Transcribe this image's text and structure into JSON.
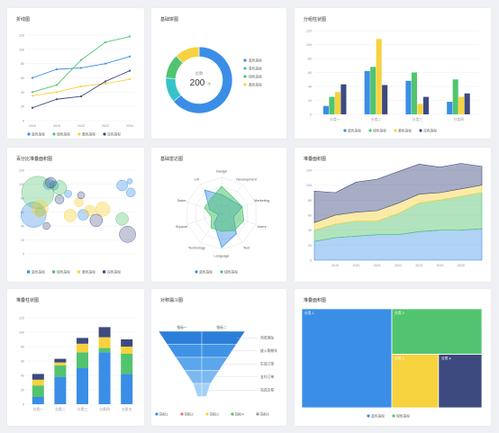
{
  "colors": {
    "blue": "#3a8ee6",
    "green": "#52c46f",
    "yellow": "#f7d23f",
    "navy": "#3d4a80",
    "cyan": "#35c3c8",
    "grid": "#eceef2",
    "axis": "#ccd0d6",
    "label": "#8a8f99"
  },
  "titles": [
    "折线图",
    "基础饼图",
    "分组柱状图",
    "百分比堆叠面积图",
    "基础雷达图",
    "堆叠面积图",
    "堆叠柱状图",
    "对称漏斗图",
    "堆叠面积图"
  ],
  "chart_data": [
    {
      "type": "line",
      "title": "折线图",
      "ylim": [
        0,
        120
      ],
      "yticks": [
        "0",
        "20",
        "40",
        "60",
        "80",
        "100",
        "120"
      ],
      "categories": [
        "2020",
        "2019",
        "2022",
        "2023",
        "2024"
      ],
      "series": [
        {
          "name": "蓝色指标",
          "values": [
            60,
            72,
            74,
            80,
            90
          ]
        },
        {
          "name": "绿色指标",
          "values": [
            40,
            50,
            85,
            110,
            118
          ]
        },
        {
          "name": "黄色指标",
          "values": [
            35,
            40,
            48,
            52,
            58
          ]
        },
        {
          "name": "深色指标",
          "values": [
            18,
            30,
            34,
            55,
            70
          ]
        }
      ]
    },
    {
      "type": "pie",
      "title": "基础饼图",
      "center_label": "总数",
      "center_value": "200",
      "center_unit": "个",
      "series": [
        {
          "name": "蓝色指标",
          "value": 128
        },
        {
          "name": "青色指标",
          "value": 24
        },
        {
          "name": "绿色指标",
          "value": 24
        },
        {
          "name": "黄色指标",
          "value": 24
        }
      ]
    },
    {
      "type": "bar",
      "title": "分组柱状图",
      "ylim": [
        0,
        120
      ],
      "yticks": [
        "0",
        "20",
        "40",
        "60",
        "80",
        "100",
        "120"
      ],
      "categories": [
        "分类一",
        "分类二",
        "分类三",
        "分类四"
      ],
      "series": [
        {
          "name": "蓝色指标",
          "values": [
            12,
            62,
            48,
            18
          ]
        },
        {
          "name": "绿色指标",
          "values": [
            25,
            68,
            60,
            50
          ]
        },
        {
          "name": "黄色指标",
          "values": [
            32,
            108,
            15,
            25
          ]
        },
        {
          "name": "深色指标",
          "values": [
            43,
            42,
            25,
            30
          ]
        }
      ]
    },
    {
      "type": "scatter",
      "title": "百分比堆叠面积图",
      "ylim": [
        0,
        120
      ],
      "yticks": [
        "0",
        "20",
        "40",
        "60",
        "80",
        "100",
        "120"
      ],
      "series": [
        {
          "name": "蓝色指标",
          "points": [
            [
              6,
              56,
              14
            ],
            [
              20,
              100,
              6
            ],
            [
              25,
              98,
              5
            ],
            [
              38,
              86,
              4
            ],
            [
              52,
              56,
              6
            ],
            [
              88,
              98,
              6
            ],
            [
              95,
              104,
              3
            ],
            [
              96,
              88,
              5
            ]
          ]
        },
        {
          "name": "绿色指标",
          "points": [
            [
              10,
              88,
              18
            ],
            [
              30,
              95,
              8
            ],
            [
              12,
              60,
              5
            ],
            [
              88,
              50,
              7
            ]
          ]
        },
        {
          "name": "黄色指标",
          "points": [
            [
              12,
              65,
              9
            ],
            [
              40,
              55,
              7
            ],
            [
              58,
              62,
              6
            ],
            [
              70,
              64,
              8
            ],
            [
              48,
              74,
              5
            ]
          ]
        },
        {
          "name": "深色指标",
          "points": [
            [
              22,
              102,
              6
            ],
            [
              30,
              78,
              5
            ],
            [
              64,
              48,
              7
            ],
            [
              93,
              28,
              9
            ],
            [
              18,
              40,
              4
            ],
            [
              50,
              84,
              4
            ]
          ]
        }
      ]
    },
    {
      "type": "radar",
      "title": "基础雷达图",
      "axes": [
        "Design",
        "Development",
        "Marketing",
        "Users",
        "Test",
        "Language",
        "Technology",
        "Support",
        "Sales",
        "UX"
      ],
      "series": [
        {
          "name": "蓝色指标",
          "values": [
            0.52,
            0.45,
            0.6,
            0.35,
            0.7,
            0.95,
            0.35,
            0.1,
            0.35,
            0.8
          ]
        },
        {
          "name": "绿色指标",
          "values": [
            0.75,
            0.55,
            0.6,
            0.65,
            0.6,
            0.5,
            0.5,
            0.3,
            0.5,
            0.5
          ]
        }
      ]
    },
    {
      "type": "area",
      "title": "堆叠面积图",
      "ylim": [
        0,
        120
      ],
      "yticks": [
        "0",
        "20",
        "40",
        "60",
        "80",
        "100",
        "120"
      ],
      "categories": [
        "2018",
        "2019",
        "2020",
        "2021",
        "2022",
        "2023",
        "2024",
        "2025",
        "2026"
      ],
      "series": [
        {
          "name": "s1",
          "values": [
            25,
            30,
            32,
            34,
            34,
            38,
            40,
            40,
            42
          ]
        },
        {
          "name": "s2",
          "values": [
            15,
            18,
            20,
            18,
            28,
            38,
            40,
            45,
            48
          ]
        },
        {
          "name": "s3",
          "values": [
            10,
            12,
            12,
            14,
            14,
            12,
            10,
            10,
            10
          ]
        },
        {
          "name": "s4",
          "values": [
            42,
            30,
            40,
            42,
            42,
            40,
            34,
            34,
            25
          ]
        }
      ]
    },
    {
      "type": "bar",
      "stacked": true,
      "title": "堆叠柱状图",
      "ylim": [
        0,
        120
      ],
      "yticks": [
        "0",
        "20",
        "40",
        "60",
        "80",
        "100",
        "120"
      ],
      "categories": [
        "分类一",
        "分类二",
        "分类三",
        "分类四",
        "分类五"
      ],
      "series": [
        {
          "name": "蓝色指标",
          "values": [
            10,
            38,
            50,
            72,
            42
          ]
        },
        {
          "name": "绿色指标",
          "values": [
            16,
            16,
            22,
            6,
            28
          ]
        },
        {
          "name": "黄色指标",
          "values": [
            8,
            4,
            12,
            15,
            10
          ]
        },
        {
          "name": "深色指标",
          "values": [
            8,
            5,
            8,
            14,
            10
          ]
        }
      ]
    },
    {
      "type": "funnel",
      "title": "对称漏斗图",
      "top_labels": [
        "指标一",
        "指标二"
      ],
      "stage_labels": [
        "浏览网站",
        "放入购物车",
        "生成订单",
        "支付订单",
        "完成交易"
      ],
      "values": [
        100,
        80,
        60,
        40,
        20
      ],
      "series": [
        {
          "name": "指标1"
        },
        {
          "name": "指标2"
        },
        {
          "name": "指标3"
        },
        {
          "name": "指标4"
        },
        {
          "name": "指标5"
        }
      ]
    },
    {
      "type": "treemap",
      "title": "堆叠面积图",
      "series": [
        {
          "name": "蓝色指标",
          "value": 50,
          "label": "分类 1"
        },
        {
          "name": "绿色指标",
          "value": 23,
          "label": "分类 2"
        },
        {
          "name": "黄色指标",
          "value": 14,
          "label": "分类 3"
        },
        {
          "name": "深色指标",
          "value": 13,
          "label": "分类 4"
        }
      ]
    }
  ]
}
